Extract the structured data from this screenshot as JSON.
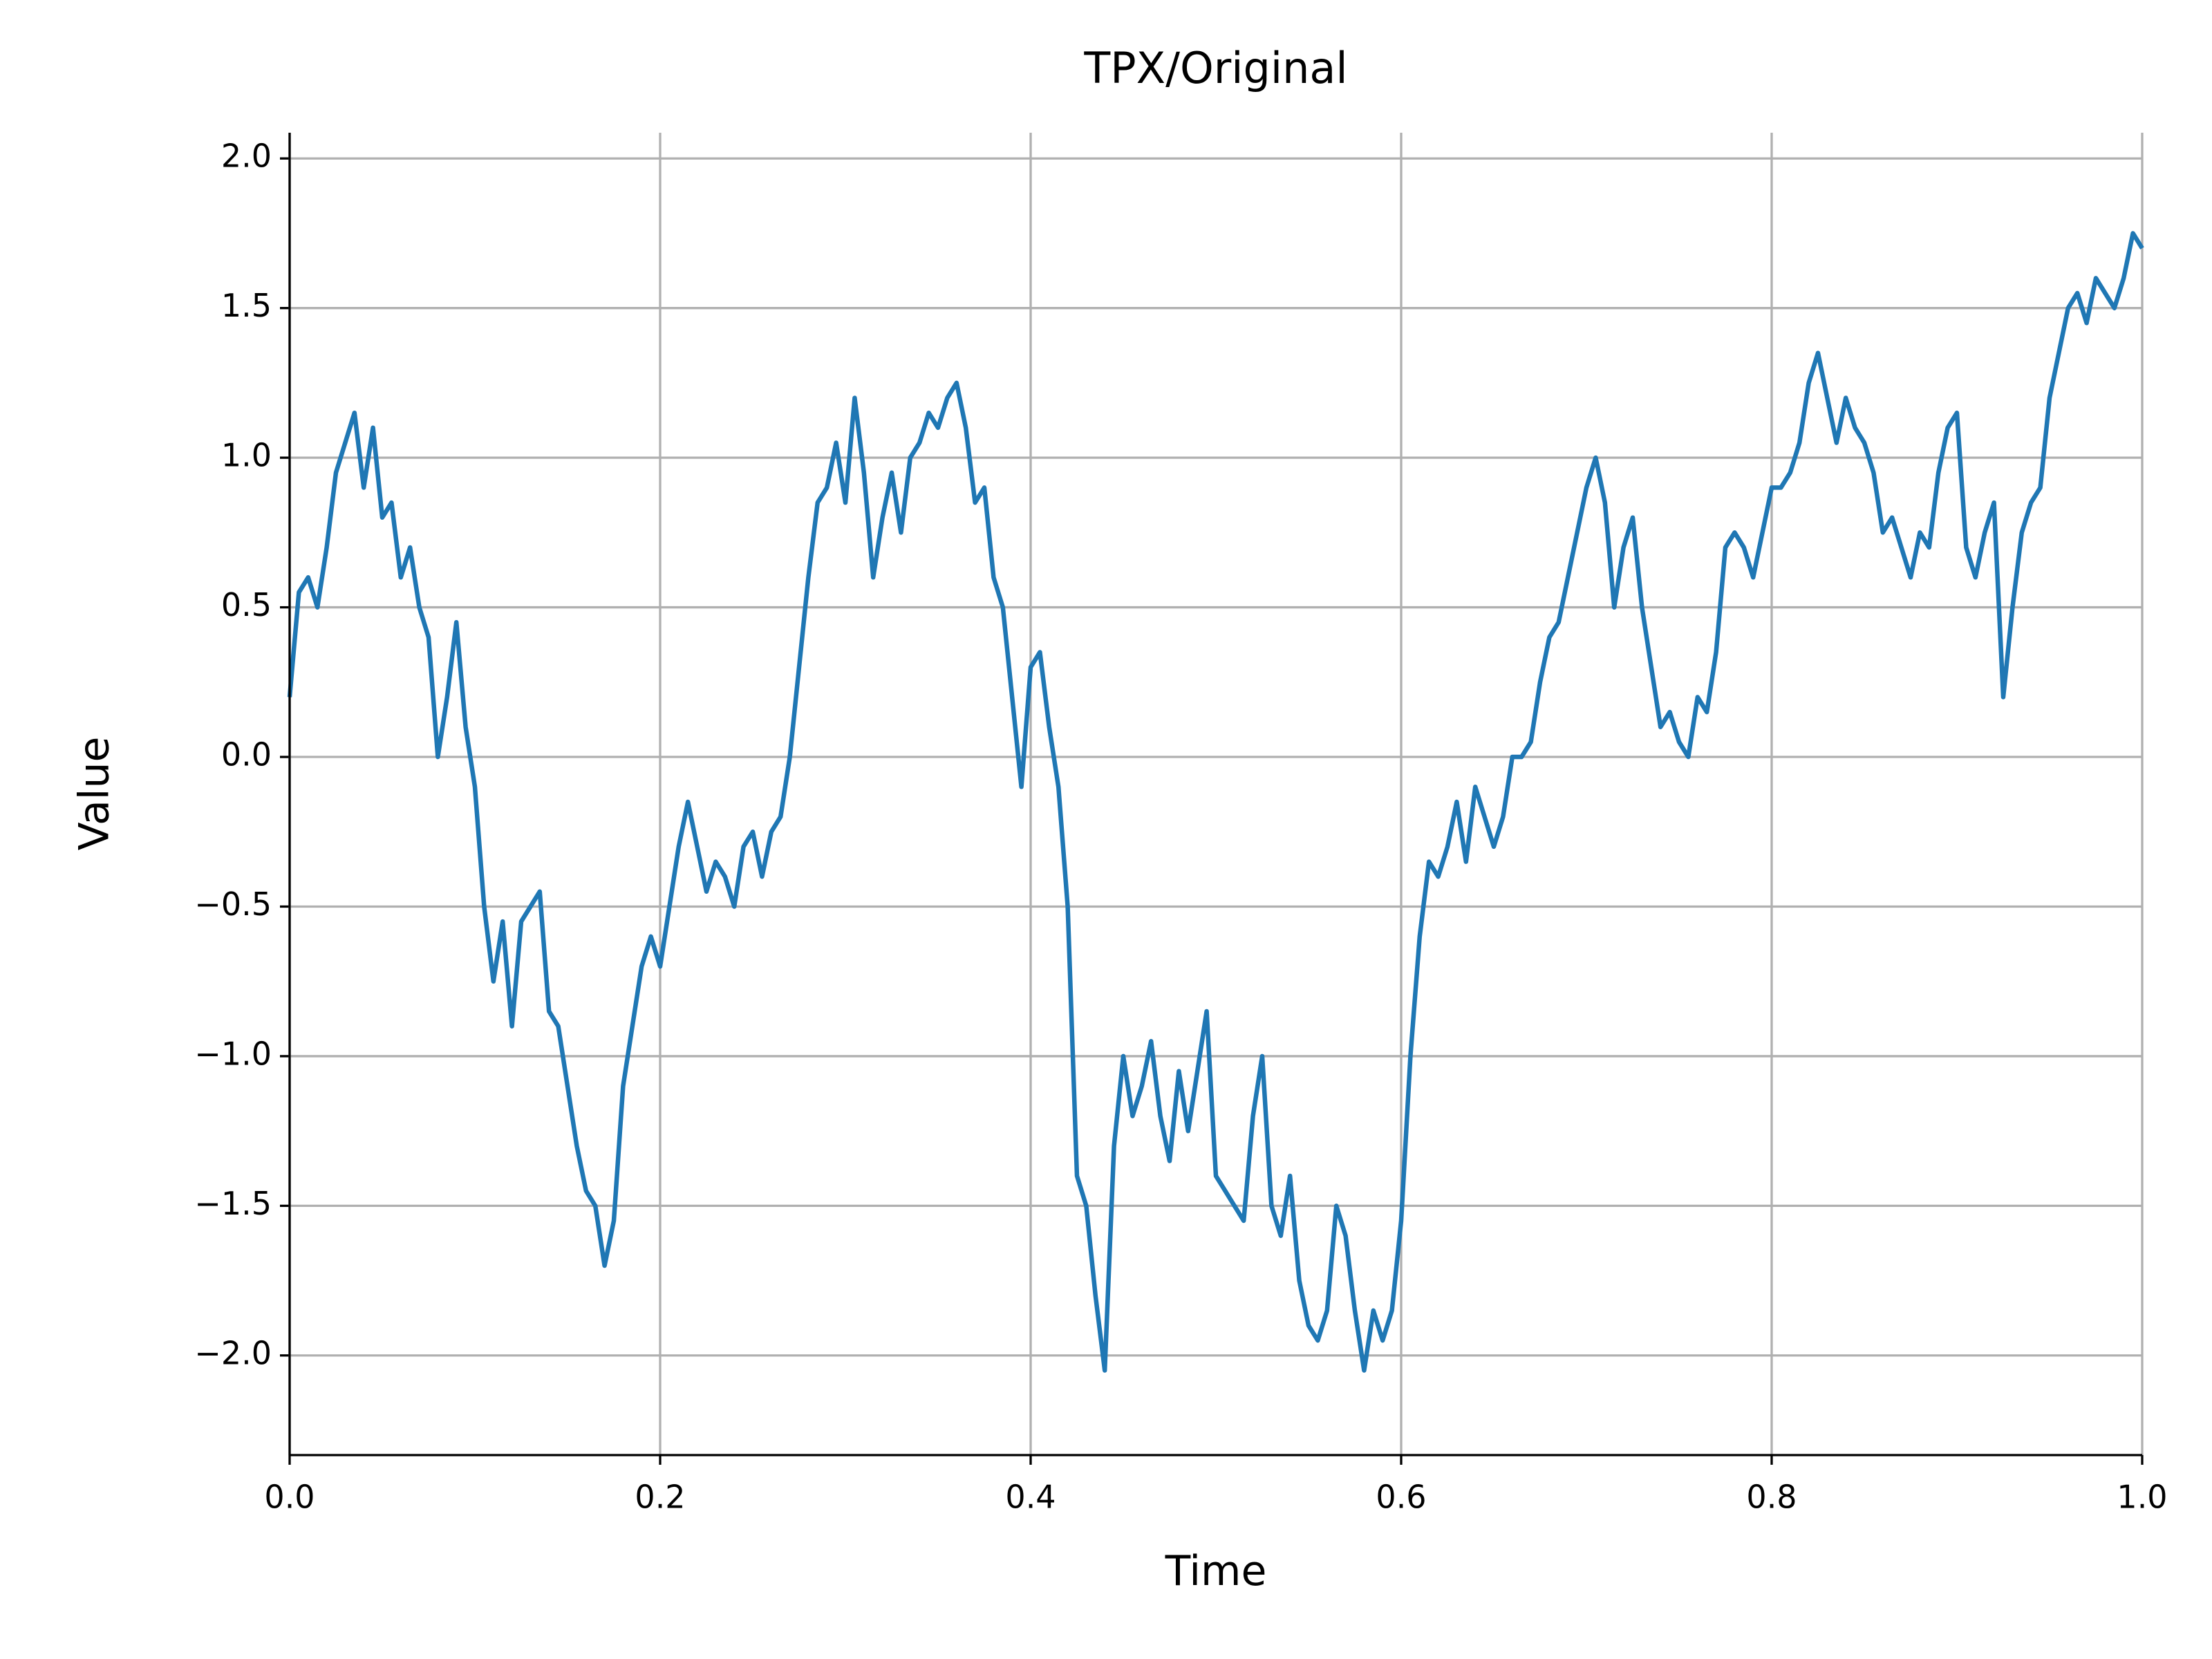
{
  "chart_data": {
    "type": "line",
    "title": "TPX/Original",
    "x_label": "Time",
    "y_label": "Value",
    "xlim": [
      0,
      1
    ],
    "ylim": [
      -2.333,
      2.086
    ],
    "xticks": [
      {
        "value": 0,
        "label": "0.0"
      },
      {
        "value": 0.2,
        "label": "0.2"
      },
      {
        "value": 0.4,
        "label": "0.4"
      },
      {
        "value": 0.6,
        "label": "0.6"
      },
      {
        "value": 0.8,
        "label": "0.8"
      },
      {
        "value": 1,
        "label": "1.0"
      }
    ],
    "yticks": [
      {
        "value": -2,
        "label": "−2.0"
      },
      {
        "value": -1.5,
        "label": "−1.5"
      },
      {
        "value": -1,
        "label": "−1.0"
      },
      {
        "value": -0.5,
        "label": "−0.5"
      },
      {
        "value": 0,
        "label": "0.0"
      },
      {
        "value": 0.5,
        "label": "0.5"
      },
      {
        "value": 1,
        "label": "1.0"
      },
      {
        "value": 1.5,
        "label": "1.5"
      },
      {
        "value": 2,
        "label": "2.0"
      }
    ],
    "grid": true,
    "x": [
      0,
      0.005,
      0.01,
      0.015,
      0.02,
      0.025,
      0.03,
      0.035,
      0.04,
      0.045,
      0.05,
      0.055,
      0.06,
      0.065,
      0.07,
      0.075,
      0.08,
      0.085,
      0.09,
      0.095,
      0.1,
      0.105,
      0.11,
      0.115,
      0.12,
      0.125,
      0.13,
      0.135,
      0.14,
      0.145,
      0.15,
      0.155,
      0.16,
      0.165,
      0.17,
      0.175,
      0.18,
      0.185,
      0.19,
      0.195,
      0.2,
      0.205,
      0.21,
      0.215,
      0.22,
      0.225,
      0.23,
      0.235,
      0.24,
      0.245,
      0.25,
      0.255,
      0.26,
      0.265,
      0.27,
      0.275,
      0.28,
      0.285,
      0.29,
      0.295,
      0.3,
      0.305,
      0.31,
      0.315,
      0.32,
      0.325,
      0.33,
      0.335,
      0.34,
      0.345,
      0.35,
      0.355,
      0.36,
      0.365,
      0.37,
      0.375,
      0.38,
      0.385,
      0.39,
      0.395,
      0.4,
      0.405,
      0.41,
      0.415,
      0.42,
      0.425,
      0.43,
      0.435,
      0.44,
      0.445,
      0.45,
      0.455,
      0.46,
      0.465,
      0.47,
      0.475,
      0.48,
      0.485,
      0.49,
      0.495,
      0.5,
      0.505,
      0.51,
      0.515,
      0.52,
      0.525,
      0.53,
      0.535,
      0.54,
      0.545,
      0.55,
      0.555,
      0.56,
      0.565,
      0.57,
      0.575,
      0.58,
      0.585,
      0.59,
      0.595,
      0.6,
      0.605,
      0.61,
      0.615,
      0.62,
      0.625,
      0.63,
      0.635,
      0.64,
      0.645,
      0.65,
      0.655,
      0.66,
      0.665,
      0.67,
      0.675,
      0.68,
      0.685,
      0.69,
      0.695,
      0.7,
      0.705,
      0.71,
      0.715,
      0.72,
      0.725,
      0.73,
      0.735,
      0.74,
      0.745,
      0.75,
      0.755,
      0.76,
      0.765,
      0.77,
      0.775,
      0.78,
      0.785,
      0.79,
      0.795,
      0.8,
      0.805,
      0.81,
      0.815,
      0.82,
      0.825,
      0.83,
      0.835,
      0.84,
      0.845,
      0.85,
      0.855,
      0.86,
      0.865,
      0.87,
      0.875,
      0.88,
      0.885,
      0.89,
      0.895,
      0.9,
      0.905,
      0.91,
      0.915,
      0.92,
      0.925,
      0.93,
      0.935,
      0.94,
      0.945,
      0.95,
      0.955,
      0.96,
      0.965,
      0.97,
      0.975,
      0.98,
      0.985,
      0.99,
      0.995,
      1
    ],
    "series": [
      {
        "color": "#1f77b4",
        "values": [
          0.2,
          0.55,
          0.6,
          0.5,
          0.7,
          0.95,
          1.05,
          1.15,
          0.9,
          1.1,
          0.8,
          0.85,
          0.6,
          0.7,
          0.5,
          0.4,
          0.0,
          0.2,
          0.45,
          0.1,
          -0.1,
          -0.5,
          -0.75,
          -0.55,
          -0.9,
          -0.55,
          -0.5,
          -0.45,
          -0.85,
          -0.9,
          -1.1,
          -1.3,
          -1.45,
          -1.5,
          -1.7,
          -1.55,
          -1.1,
          -0.9,
          -0.7,
          -0.6,
          -0.7,
          -0.5,
          -0.3,
          -0.15,
          -0.3,
          -0.45,
          -0.35,
          -0.4,
          -0.5,
          -0.3,
          -0.25,
          -0.4,
          -0.25,
          -0.2,
          0.0,
          0.3,
          0.6,
          0.85,
          0.9,
          1.05,
          0.85,
          1.2,
          0.95,
          0.6,
          0.8,
          0.95,
          0.75,
          1.0,
          1.05,
          1.15,
          1.1,
          1.2,
          1.25,
          1.1,
          0.85,
          0.9,
          0.6,
          0.5,
          0.2,
          -0.1,
          0.3,
          0.35,
          0.1,
          -0.1,
          -0.5,
          -1.4,
          -1.5,
          -1.8,
          -2.05,
          -1.3,
          -1.0,
          -1.2,
          -1.1,
          -0.95,
          -1.2,
          -1.35,
          -1.05,
          -1.25,
          -1.05,
          -0.85,
          -1.4,
          -1.45,
          -1.5,
          -1.55,
          -1.2,
          -1.0,
          -1.5,
          -1.6,
          -1.4,
          -1.75,
          -1.9,
          -1.95,
          -1.85,
          -1.5,
          -1.6,
          -1.85,
          -2.05,
          -1.85,
          -1.95,
          -1.85,
          -1.55,
          -1.0,
          -0.6,
          -0.35,
          -0.4,
          -0.3,
          -0.15,
          -0.35,
          -0.1,
          -0.2,
          -0.3,
          -0.2,
          0.0,
          0.0,
          0.05,
          0.25,
          0.4,
          0.45,
          0.6,
          0.75,
          0.9,
          1.0,
          0.85,
          0.5,
          0.7,
          0.8,
          0.5,
          0.3,
          0.1,
          0.15,
          0.05,
          0.0,
          0.2,
          0.15,
          0.35,
          0.7,
          0.75,
          0.7,
          0.6,
          0.75,
          0.9,
          0.9,
          0.95,
          1.05,
          1.25,
          1.35,
          1.2,
          1.05,
          1.2,
          1.1,
          1.05,
          0.95,
          0.75,
          0.8,
          0.7,
          0.6,
          0.75,
          0.7,
          0.95,
          1.1,
          1.15,
          0.7,
          0.6,
          0.75,
          0.85,
          0.2,
          0.5,
          0.75,
          0.85,
          0.9,
          1.2,
          1.35,
          1.5,
          1.55,
          1.45,
          1.6,
          1.55,
          1.5,
          1.6,
          1.75,
          1.7
        ]
      }
    ]
  }
}
